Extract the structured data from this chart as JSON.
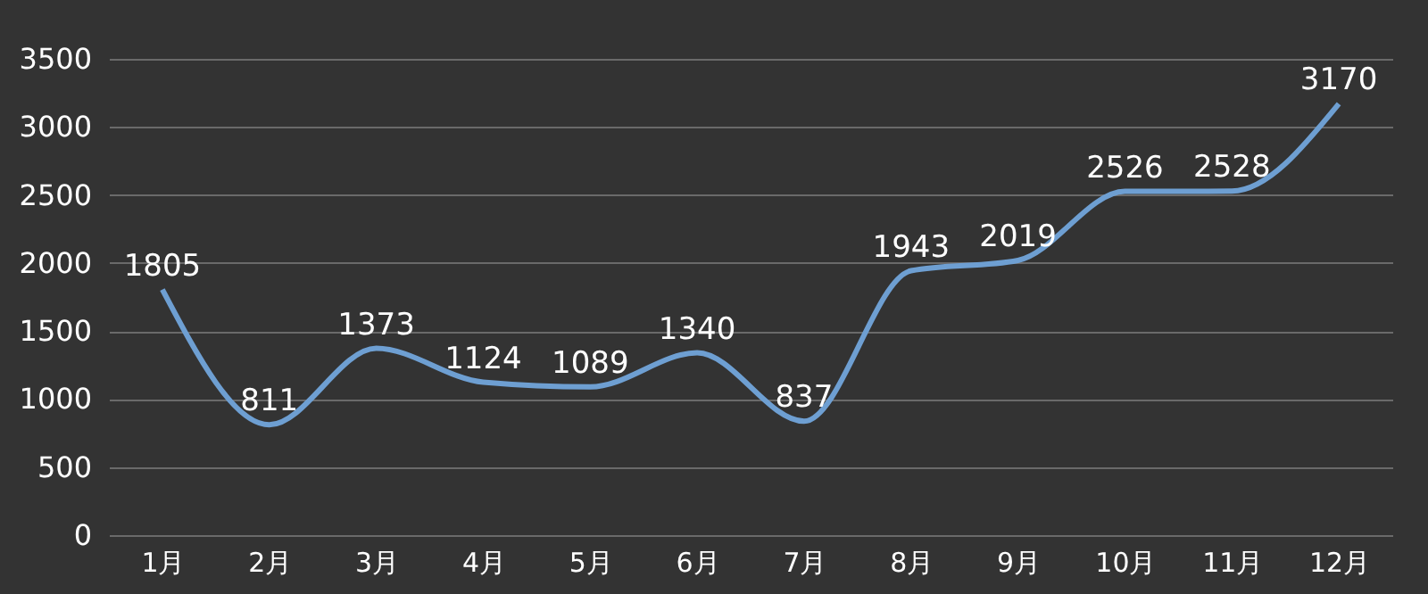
{
  "chart_data": {
    "type": "line",
    "categories": [
      "1月",
      "2月",
      "3月",
      "4月",
      "5月",
      "6月",
      "7月",
      "8月",
      "9月",
      "10月",
      "11月",
      "12月"
    ],
    "series": [
      {
        "color": "#6e9fd2",
        "values": [
          1805,
          811,
          1373,
          1124,
          1089,
          1340,
          837,
          1943,
          2019,
          2526,
          2528,
          3170
        ]
      }
    ],
    "ylim": [
      0,
      3500
    ],
    "yticks": [
      0,
      500,
      1000,
      1500,
      2000,
      2500,
      3000,
      3500
    ],
    "grid": "y",
    "data_labels": true,
    "marker": "none",
    "line_style": "solid"
  }
}
